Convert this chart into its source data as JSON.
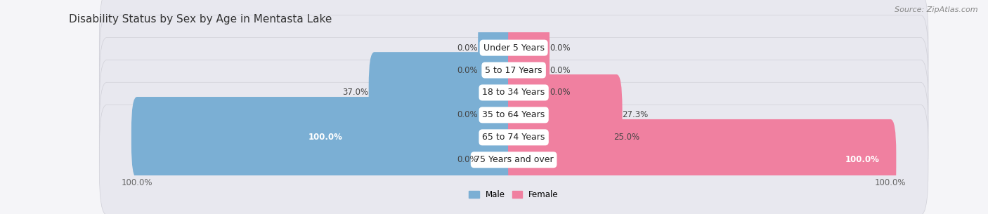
{
  "title": "Disability Status by Sex by Age in Mentasta Lake",
  "source": "Source: ZipAtlas.com",
  "categories": [
    "Under 5 Years",
    "5 to 17 Years",
    "18 to 34 Years",
    "35 to 64 Years",
    "65 to 74 Years",
    "75 Years and over"
  ],
  "male_values": [
    0.0,
    0.0,
    37.0,
    0.0,
    100.0,
    0.0
  ],
  "female_values": [
    0.0,
    0.0,
    0.0,
    27.3,
    25.0,
    100.0
  ],
  "male_color": "#7bafd4",
  "female_color": "#f080a0",
  "male_color_dark": "#5590c0",
  "female_color_dark": "#e05080",
  "bg_color": "#f5f5f8",
  "row_bg_color": "#e8e8ef",
  "row_bg_light": "#efefef",
  "bar_height": 0.62,
  "stub_size": 8.0,
  "max_value": 100.0,
  "label_fontsize": 8.5,
  "cat_fontsize": 9.0,
  "title_fontsize": 11,
  "source_fontsize": 8,
  "axis_fontsize": 8.5
}
